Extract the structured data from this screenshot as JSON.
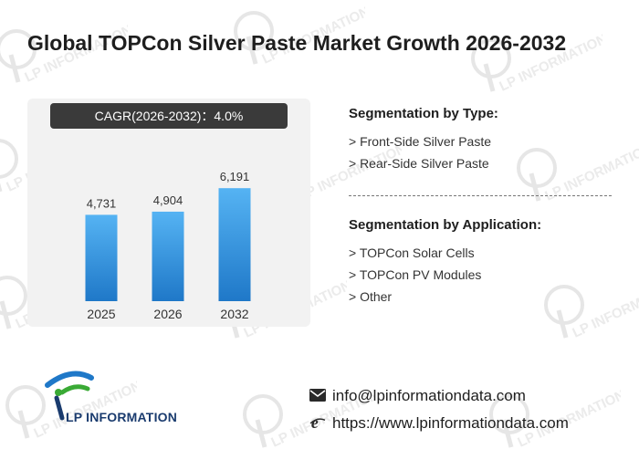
{
  "title": "Global TOPCon Silver Paste Market Growth 2026-2032",
  "cagr_label": "CAGR(2026-2032)：4.0%",
  "chart_data": {
    "type": "bar",
    "categories": [
      "2025",
      "2026",
      "2032"
    ],
    "values": [
      4731,
      4904,
      6191
    ],
    "value_labels": [
      "4,731",
      "4,904",
      "6,191"
    ],
    "title": "",
    "xlabel": "",
    "ylabel": "",
    "ylim": [
      0,
      8000
    ],
    "grid": false,
    "bar_color_top": "#55b3f3",
    "bar_color_bottom": "#1f78c8"
  },
  "segmentation_type": {
    "heading": "Segmentation by Type:",
    "items": [
      "> Front-Side Silver Paste",
      "> Rear-Side Silver Paste"
    ]
  },
  "segmentation_application": {
    "heading": "Segmentation by Application:",
    "items": [
      "> TOPCon Solar Cells",
      "> TOPCon PV Modules",
      "> Other"
    ]
  },
  "brand": {
    "logo_text": "LP INFORMATION",
    "watermark_text": "LP INFORMATION"
  },
  "contact": {
    "email": "info@lpinformationdata.com",
    "website": "https://www.lpinformationdata.com",
    "email_icon": "mail-icon",
    "web_icon": "browser-e-icon"
  },
  "colors": {
    "accent_blue": "#1f78c8",
    "logo_green": "#3aaa35",
    "logo_navy": "#1a3b6e",
    "cagr_bg": "#3a3a3a"
  }
}
